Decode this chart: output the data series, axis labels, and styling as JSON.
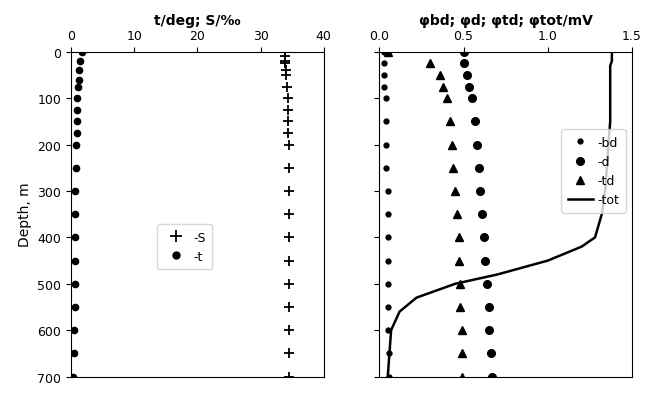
{
  "title_left": "t/deg; S/‰",
  "title_right": "φbd; φd; φtd; φtot/mV",
  "ylabel": "Depth, m",
  "xlim_left": [
    0,
    40
  ],
  "xlim_right": [
    0.0,
    1.5
  ],
  "ylim": [
    0,
    700
  ],
  "xticks_left": [
    0,
    10,
    20,
    30,
    40
  ],
  "xticks_right": [
    0.0,
    0.5,
    1.0,
    1.5
  ],
  "yticks": [
    0,
    100,
    200,
    300,
    400,
    500,
    600,
    700
  ],
  "t_depth": [
    0,
    20,
    40,
    60,
    75,
    100,
    125,
    150,
    175,
    200,
    250,
    300,
    350,
    400,
    450,
    500,
    550,
    600,
    650,
    700
  ],
  "t_values": [
    1.8,
    1.5,
    1.3,
    1.2,
    1.1,
    1.0,
    1.0,
    0.9,
    0.9,
    0.8,
    0.8,
    0.7,
    0.7,
    0.7,
    0.6,
    0.6,
    0.6,
    0.5,
    0.5,
    0.4
  ],
  "S_depth": [
    0,
    10,
    20,
    25,
    40,
    50,
    75,
    100,
    125,
    150,
    175,
    200,
    250,
    300,
    350,
    400,
    450,
    500,
    550,
    600,
    650,
    700
  ],
  "S_values": [
    33.8,
    33.85,
    33.9,
    33.9,
    34.0,
    34.1,
    34.2,
    34.3,
    34.35,
    34.4,
    34.42,
    34.44,
    34.46,
    34.48,
    34.5,
    34.5,
    34.5,
    34.5,
    34.5,
    34.5,
    34.5,
    34.5
  ],
  "bd_depth": [
    0,
    25,
    50,
    75,
    100,
    150,
    200,
    250,
    300,
    350,
    400,
    450,
    500,
    550,
    600,
    650,
    700
  ],
  "bd_values": [
    0.03,
    0.03,
    0.03,
    0.03,
    0.04,
    0.04,
    0.04,
    0.04,
    0.05,
    0.05,
    0.05,
    0.05,
    0.05,
    0.05,
    0.05,
    0.06,
    0.06
  ],
  "d_depth": [
    0,
    25,
    50,
    75,
    100,
    150,
    200,
    250,
    300,
    350,
    400,
    450,
    500,
    550,
    600,
    650,
    700
  ],
  "d_values": [
    0.5,
    0.5,
    0.52,
    0.53,
    0.55,
    0.57,
    0.58,
    0.59,
    0.6,
    0.61,
    0.62,
    0.63,
    0.64,
    0.65,
    0.65,
    0.66,
    0.67
  ],
  "td_depth": [
    0,
    25,
    50,
    75,
    100,
    150,
    200,
    250,
    300,
    350,
    400,
    450,
    500,
    550,
    600,
    650,
    700
  ],
  "td_values": [
    0.05,
    0.3,
    0.36,
    0.38,
    0.4,
    0.42,
    0.43,
    0.44,
    0.45,
    0.46,
    0.47,
    0.47,
    0.48,
    0.48,
    0.49,
    0.49,
    0.49
  ],
  "tot_depth": [
    0,
    10,
    20,
    30,
    50,
    75,
    100,
    150,
    200,
    250,
    300,
    350,
    400,
    420,
    450,
    480,
    500,
    530,
    560,
    600,
    650,
    700
  ],
  "tot_values": [
    1.38,
    1.38,
    1.38,
    1.37,
    1.37,
    1.37,
    1.37,
    1.37,
    1.36,
    1.35,
    1.34,
    1.32,
    1.28,
    1.2,
    1.0,
    0.7,
    0.45,
    0.22,
    0.12,
    0.07,
    0.06,
    0.05
  ]
}
